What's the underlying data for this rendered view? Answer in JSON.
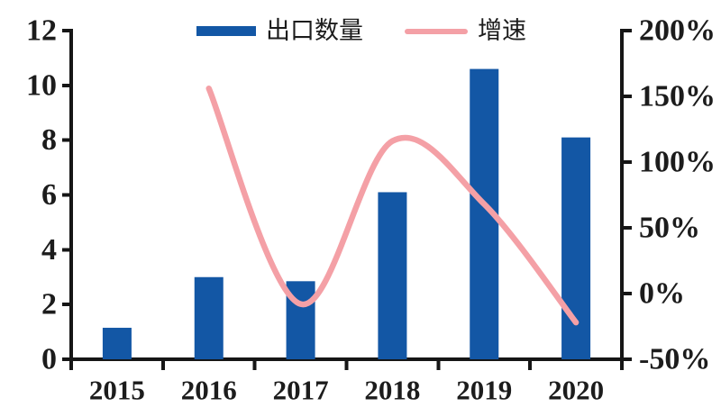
{
  "legend": {
    "bar_label": "出口数量",
    "line_label": "增速"
  },
  "chart_data": {
    "type": "bar",
    "subtype": "combo-bar-line",
    "title": "",
    "categories": [
      "2015",
      "2016",
      "2017",
      "2018",
      "2019",
      "2020"
    ],
    "series": [
      {
        "name": "出口数量",
        "type": "bar",
        "axis": "left",
        "color": "#1357A5",
        "values": [
          1.15,
          3.0,
          2.85,
          6.1,
          10.6,
          8.1
        ]
      },
      {
        "name": "增速",
        "type": "line",
        "axis": "right",
        "color": "#F4A0A6",
        "values": [
          null,
          156,
          -8,
          116,
          68,
          -22
        ]
      }
    ],
    "left_axis": {
      "min": 0,
      "max": 12,
      "tick_labels": [
        "0",
        "2",
        "4",
        "6",
        "8",
        "10",
        "12"
      ]
    },
    "right_axis": {
      "min": -50,
      "max": 200,
      "unit": "%",
      "tick_labels": [
        "-50%",
        "0%",
        "50%",
        "100%",
        "150%",
        "200%"
      ]
    },
    "legend_position": "top-center",
    "grid": false,
    "colors": {
      "axis": "#161616",
      "text": "#1c1c1c",
      "background": "#ffffff"
    }
  }
}
